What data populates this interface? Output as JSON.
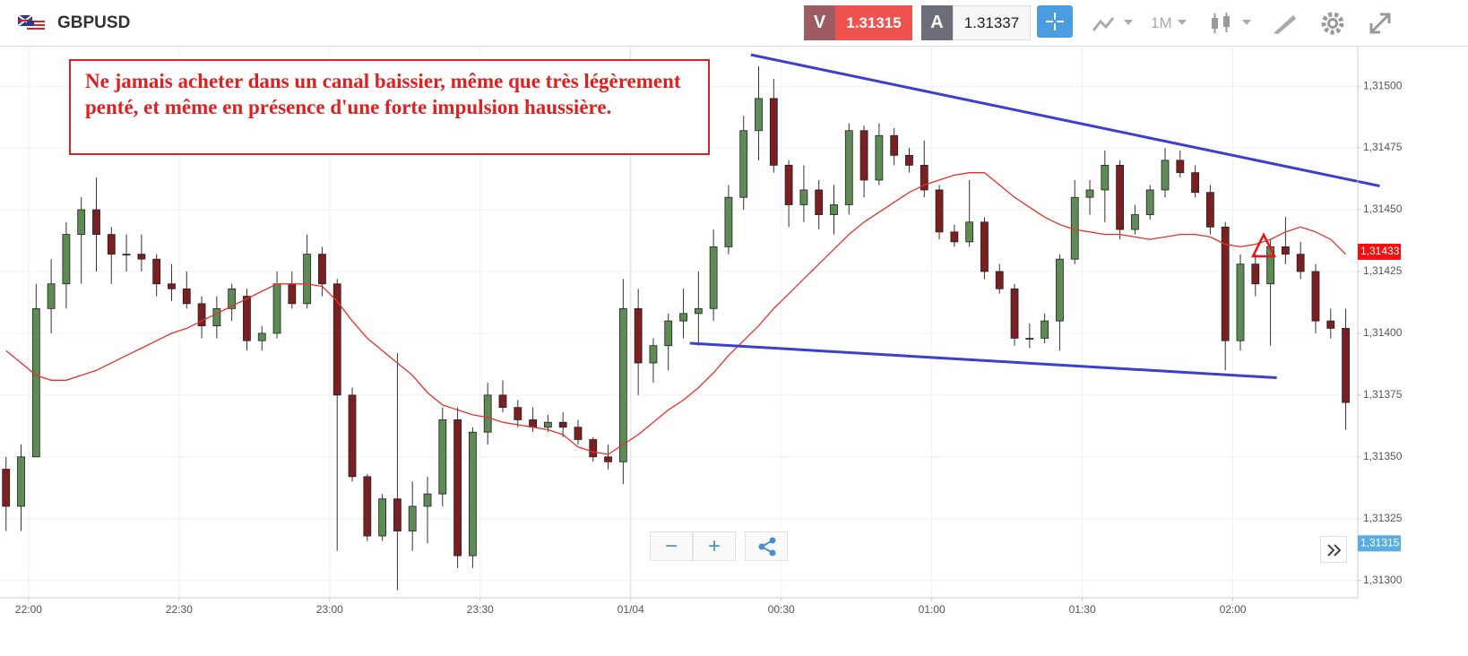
{
  "header": {
    "symbol": "GBPUSD",
    "bid_label": "V",
    "bid": "1.31315",
    "ask_label": "A",
    "ask": "1.31337",
    "timeframe": "1M"
  },
  "chart_data": {
    "type": "candlestick",
    "annotation": "Ne jamais acheter dans un canal baissier, même que très légèrement penté, et même en présence d'une forte impulsion haussière.",
    "bull_color": "#5e8a55",
    "bear_color": "#7c1f22",
    "open": [
      1.31345,
      1.3133,
      1.3135,
      1.3141,
      1.3142,
      1.3144,
      1.3145,
      1.3144,
      1.31432,
      1.31432,
      1.3143,
      1.3142,
      1.31418,
      1.31412,
      1.31403,
      1.3141,
      1.31415,
      1.31397,
      1.314,
      1.3142,
      1.31412,
      1.31432,
      1.3142,
      1.31375,
      1.31342,
      1.31318,
      1.31333,
      1.3132,
      1.3133,
      1.31335,
      1.31365,
      1.3131,
      1.3136,
      1.31375,
      1.3137,
      1.31365,
      1.31362,
      1.31364,
      1.31362,
      1.31357,
      1.3135,
      1.31348,
      1.3141,
      1.31388,
      1.31395,
      1.31405,
      1.31408,
      1.3141,
      1.31435,
      1.31455,
      1.31482,
      1.31495,
      1.31468,
      1.31452,
      1.31458,
      1.31448,
      1.31452,
      1.31482,
      1.31462,
      1.3148,
      1.31472,
      1.31468,
      1.31458,
      1.31441,
      1.31437,
      1.31445,
      1.31425,
      1.31418,
      1.31398,
      1.31398,
      1.31405,
      1.3143,
      1.31455,
      1.31458,
      1.31468,
      1.31442,
      1.31448,
      1.31458,
      1.3147,
      1.31465,
      1.31457,
      1.31443,
      1.31397,
      1.31428,
      1.3142,
      1.31435,
      1.31432,
      1.31425,
      1.31405,
      1.31402
    ],
    "high": [
      1.3135,
      1.31355,
      1.3142,
      1.3143,
      1.31445,
      1.31455,
      1.31463,
      1.31443,
      1.3144,
      1.3144,
      1.31432,
      1.31428,
      1.31425,
      1.31415,
      1.31415,
      1.3142,
      1.31418,
      1.31403,
      1.31425,
      1.31425,
      1.3144,
      1.31435,
      1.31422,
      1.31378,
      1.31343,
      1.31335,
      1.31392,
      1.3134,
      1.31342,
      1.3137,
      1.3137,
      1.31362,
      1.3138,
      1.31381,
      1.31373,
      1.3137,
      1.31367,
      1.31368,
      1.31365,
      1.31358,
      1.31355,
      1.31422,
      1.31418,
      1.31398,
      1.31408,
      1.31418,
      1.31425,
      1.31442,
      1.3146,
      1.31488,
      1.31508,
      1.31503,
      1.3147,
      1.31468,
      1.31462,
      1.3146,
      1.31485,
      1.31484,
      1.31485,
      1.31483,
      1.31475,
      1.31478,
      1.3146,
      1.31444,
      1.31462,
      1.31447,
      1.31428,
      1.3142,
      1.31404,
      1.31408,
      1.31432,
      1.31462,
      1.31462,
      1.31474,
      1.3147,
      1.31452,
      1.3146,
      1.31475,
      1.31474,
      1.31468,
      1.3146,
      1.31445,
      1.31432,
      1.31432,
      1.31438,
      1.31447,
      1.31437,
      1.31428,
      1.3141,
      1.3141
    ],
    "low": [
      1.3132,
      1.3132,
      1.3135,
      1.314,
      1.3141,
      1.3142,
      1.31425,
      1.3142,
      1.31425,
      1.31425,
      1.31415,
      1.31413,
      1.3141,
      1.31398,
      1.31398,
      1.31405,
      1.31393,
      1.31393,
      1.31398,
      1.3141,
      1.3141,
      1.31415,
      1.31312,
      1.3134,
      1.31316,
      1.31316,
      1.31296,
      1.31312,
      1.31315,
      1.3133,
      1.31305,
      1.31305,
      1.31355,
      1.31368,
      1.31362,
      1.3136,
      1.3136,
      1.31358,
      1.31355,
      1.31348,
      1.31345,
      1.31339,
      1.31375,
      1.3138,
      1.31385,
      1.31398,
      1.31395,
      1.31405,
      1.31432,
      1.3145,
      1.3147,
      1.31465,
      1.31443,
      1.31445,
      1.31442,
      1.3144,
      1.31448,
      1.31455,
      1.3146,
      1.31468,
      1.31465,
      1.31455,
      1.31438,
      1.31435,
      1.31435,
      1.31422,
      1.31416,
      1.31395,
      1.31394,
      1.31396,
      1.31393,
      1.31428,
      1.31448,
      1.31445,
      1.31438,
      1.3144,
      1.31446,
      1.31455,
      1.31463,
      1.31455,
      1.3144,
      1.31385,
      1.31393,
      1.31415,
      1.31395,
      1.31428,
      1.31422,
      1.314,
      1.31398,
      1.31361
    ],
    "close": [
      1.3133,
      1.3135,
      1.3141,
      1.3142,
      1.3144,
      1.3145,
      1.3144,
      1.31432,
      1.31432,
      1.3143,
      1.3142,
      1.31418,
      1.31412,
      1.31403,
      1.3141,
      1.31418,
      1.31397,
      1.314,
      1.3142,
      1.31412,
      1.31432,
      1.3142,
      1.31375,
      1.31342,
      1.31318,
      1.31333,
      1.3132,
      1.3133,
      1.31335,
      1.31365,
      1.3131,
      1.3136,
      1.31375,
      1.3137,
      1.31365,
      1.31362,
      1.31364,
      1.31362,
      1.31357,
      1.3135,
      1.31348,
      1.3141,
      1.31388,
      1.31395,
      1.31405,
      1.31408,
      1.3141,
      1.31435,
      1.31455,
      1.31482,
      1.31495,
      1.31468,
      1.31452,
      1.31458,
      1.31448,
      1.31452,
      1.31482,
      1.31462,
      1.3148,
      1.31472,
      1.31468,
      1.31458,
      1.31441,
      1.31437,
      1.31445,
      1.31425,
      1.31418,
      1.31398,
      1.31398,
      1.31405,
      1.3143,
      1.31455,
      1.31458,
      1.31468,
      1.31442,
      1.31448,
      1.31458,
      1.3147,
      1.31465,
      1.31457,
      1.31443,
      1.31397,
      1.31428,
      1.3142,
      1.31435,
      1.31432,
      1.31425,
      1.31405,
      1.31402,
      1.31372
    ],
    "moving_average": {
      "color": "#e8302a",
      "values": [
        1.31393,
        1.31388,
        1.31383,
        1.31381,
        1.31381,
        1.31383,
        1.31385,
        1.31388,
        1.31391,
        1.31394,
        1.31397,
        1.314,
        1.31402,
        1.31405,
        1.31408,
        1.31411,
        1.31414,
        1.31417,
        1.3142,
        1.3142,
        1.3142,
        1.31419,
        1.31413,
        1.31405,
        1.31398,
        1.31393,
        1.31388,
        1.31383,
        1.31376,
        1.31371,
        1.31369,
        1.31367,
        1.31366,
        1.31364,
        1.31363,
        1.31362,
        1.31361,
        1.31359,
        1.31354,
        1.31352,
        1.31351,
        1.31355,
        1.31359,
        1.31364,
        1.31369,
        1.31373,
        1.31378,
        1.31384,
        1.31391,
        1.31397,
        1.31403,
        1.3141,
        1.31416,
        1.31422,
        1.31428,
        1.31434,
        1.3144,
        1.31445,
        1.31449,
        1.31453,
        1.31457,
        1.3146,
        1.31462,
        1.31464,
        1.31465,
        1.31465,
        1.3146,
        1.31455,
        1.31451,
        1.31447,
        1.31444,
        1.31442,
        1.31441,
        1.3144,
        1.3144,
        1.31439,
        1.31438,
        1.31439,
        1.3144,
        1.3144,
        1.31439,
        1.31436,
        1.31435,
        1.31436,
        1.31438,
        1.31441,
        1.31443,
        1.31441,
        1.31438,
        1.31432
      ]
    },
    "trendlines": [
      {
        "color": "#3a3fd0",
        "x": [
          49.48,
          91.26
        ],
        "y": [
          1.315127,
          1.314596
        ]
      },
      {
        "color": "#3a3fd0",
        "x": [
          45.43,
          84.42
        ],
        "y": [
          1.31396,
          1.31382
        ]
      }
    ],
    "price_tags": [
      {
        "value": 1.31433,
        "label": "1,31433",
        "color": "#f01010"
      },
      {
        "value": 1.31315,
        "label": "1,31315",
        "color": "#5aade0"
      }
    ],
    "xlim": [
      -0.4,
      89.8
    ],
    "xticks": [
      {
        "value": 1.5,
        "label": "22:00"
      },
      {
        "value": 11.5,
        "label": "22:30"
      },
      {
        "value": 21.5,
        "label": "23:00"
      },
      {
        "value": 31.5,
        "label": "23:30"
      },
      {
        "value": 41.5,
        "label": "01/04"
      },
      {
        "value": 51.5,
        "label": "00:30"
      },
      {
        "value": 61.5,
        "label": "01:00"
      },
      {
        "value": 71.5,
        "label": "01:30"
      },
      {
        "value": 81.5,
        "label": "02:00"
      }
    ],
    "ylim": [
      1.31293,
      1.31516
    ],
    "yticks": [
      {
        "value": 1.313,
        "label": "1,31300"
      },
      {
        "value": 1.31325,
        "label": "1,31325"
      },
      {
        "value": 1.3135,
        "label": "1,31350"
      },
      {
        "value": 1.31375,
        "label": "1,31375"
      },
      {
        "value": 1.314,
        "label": "1,31400"
      },
      {
        "value": 1.31425,
        "label": "1,31425"
      },
      {
        "value": 1.3145,
        "label": "1,31450"
      },
      {
        "value": 1.31475,
        "label": "1,31475"
      },
      {
        "value": 1.315,
        "label": "1,31500"
      }
    ],
    "grid": true
  }
}
